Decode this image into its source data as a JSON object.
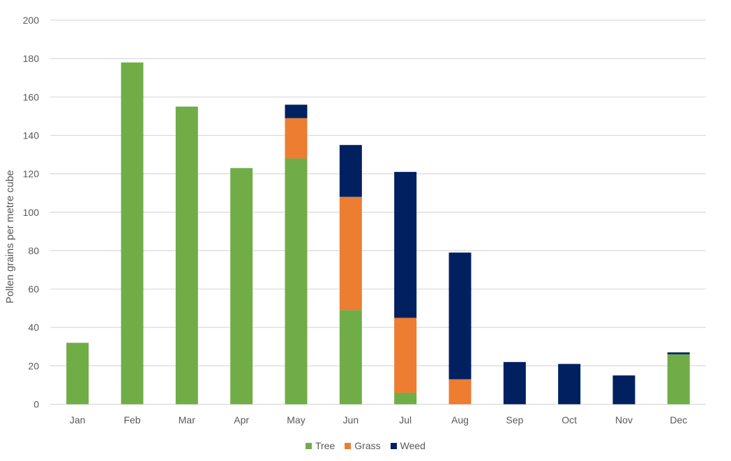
{
  "chart_data": {
    "type": "bar",
    "stacked": true,
    "title": "",
    "xlabel": "",
    "ylabel": "Pollen grains per metre cube",
    "ylim": [
      0,
      200
    ],
    "yticks": [
      0,
      20,
      40,
      60,
      80,
      100,
      120,
      140,
      160,
      180,
      200
    ],
    "grid": true,
    "legend_position": "bottom",
    "categories": [
      "Jan",
      "Feb",
      "Mar",
      "Apr",
      "May",
      "Jun",
      "Jul",
      "Aug",
      "Sep",
      "Oct",
      "Nov",
      "Dec"
    ],
    "series": [
      {
        "name": "Tree",
        "color": "#70AD47",
        "values": [
          32,
          178,
          155,
          123,
          128,
          49,
          6,
          0,
          0,
          0,
          0,
          26
        ]
      },
      {
        "name": "Grass",
        "color": "#ED7D31",
        "values": [
          0,
          0,
          0,
          0,
          21,
          59,
          39,
          13,
          0,
          0,
          0,
          0
        ]
      },
      {
        "name": "Weed",
        "color": "#002060",
        "values": [
          0,
          0,
          0,
          0,
          7,
          27,
          76,
          66,
          22,
          21,
          15,
          1
        ]
      }
    ]
  },
  "colors": {
    "gridline": "#D9D9D9",
    "text": "#595959"
  }
}
